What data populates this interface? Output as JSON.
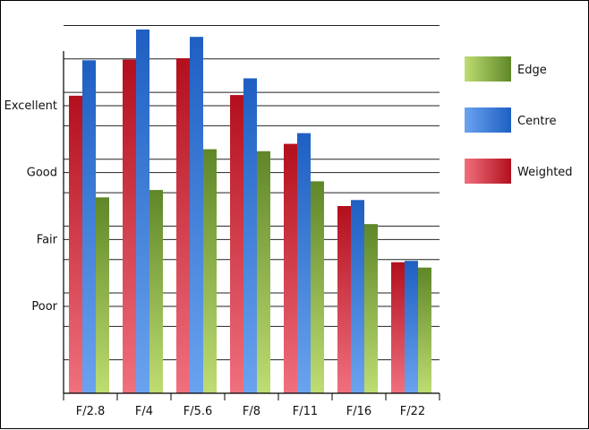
{
  "chart_data": {
    "type": "bar",
    "categories": [
      "F/2.8",
      "F/4",
      "F/5.6",
      "F/8",
      "F/11",
      "F/16",
      "F/22"
    ],
    "series": [
      {
        "name": "Weighted",
        "values": [
          4.45,
          4.99,
          5.01,
          4.46,
          3.73,
          2.8,
          1.96
        ]
      },
      {
        "name": "Centre",
        "values": [
          4.98,
          5.44,
          5.33,
          4.71,
          3.89,
          2.89,
          1.98
        ]
      },
      {
        "name": "Edge",
        "values": [
          2.93,
          3.04,
          3.65,
          3.62,
          3.17,
          2.53,
          1.88
        ]
      }
    ],
    "y_tick_labels": [
      {
        "value": 1.3,
        "label": "Poor"
      },
      {
        "value": 2.3,
        "label": "Fair"
      },
      {
        "value": 3.3,
        "label": "Good"
      },
      {
        "value": 4.3,
        "label": "Excellent"
      }
    ],
    "ylim": [
      0,
      5.6
    ],
    "grid": true,
    "legend_position": "right",
    "legend_order": [
      "Edge",
      "Centre",
      "Weighted"
    ],
    "colors": {
      "Weighted": {
        "light": "#f0707e",
        "dark": "#b30f1d"
      },
      "Centre": {
        "light": "#6aa3ef",
        "dark": "#1e5fc2"
      },
      "Edge": {
        "light": "#bedd72",
        "dark": "#5f8728"
      }
    }
  }
}
